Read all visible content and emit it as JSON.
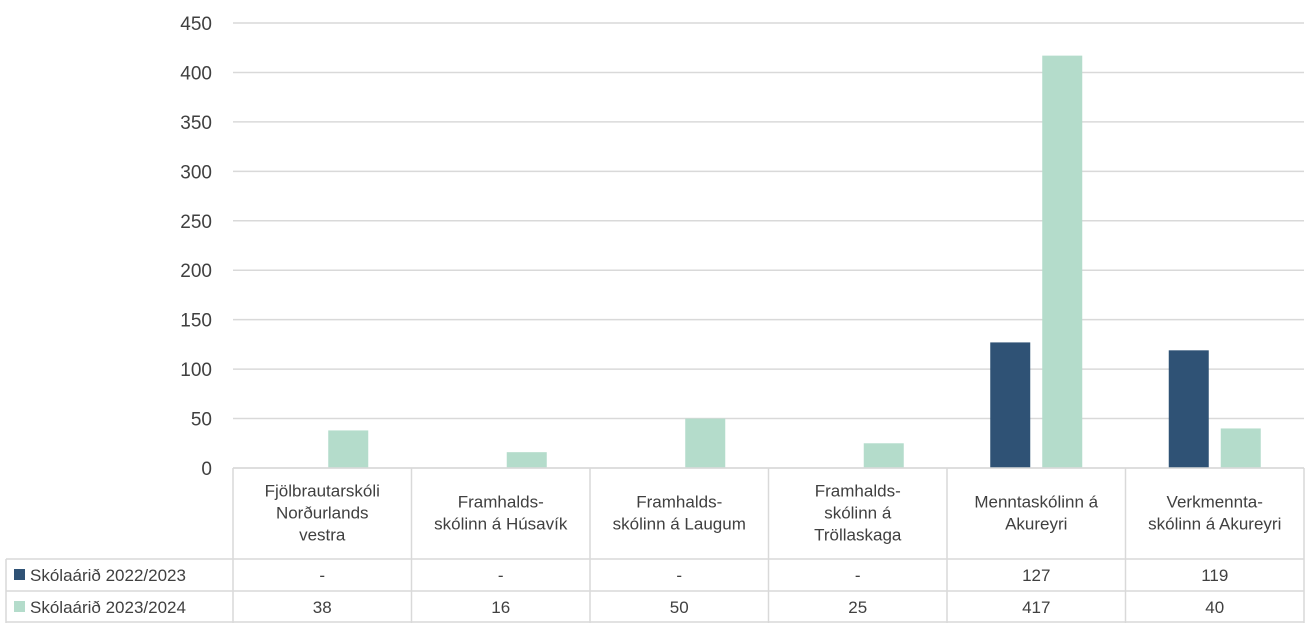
{
  "chart_data": {
    "type": "bar",
    "categories": [
      [
        "Fjölbrautarskóli",
        "Norðurlands",
        "vestra"
      ],
      [
        "Framhalds-",
        "skólinn á Húsavík"
      ],
      [
        "Framhalds-",
        "skólinn á Laugum"
      ],
      [
        "Framhalds-",
        "skólinn á",
        "Tröllaskaga"
      ],
      [
        "Menntaskólinn á",
        "Akureyri"
      ],
      [
        "Verkmennta-",
        "skólinn á Akureyri"
      ]
    ],
    "series": [
      {
        "name": "Skólaárið 2022/2023",
        "color": "#2f5275",
        "values": [
          null,
          null,
          null,
          null,
          127,
          119
        ],
        "labels": [
          "-",
          "-",
          "-",
          "-",
          "127",
          "119"
        ]
      },
      {
        "name": "Skólaárið 2023/2024",
        "color": "#b4dccb",
        "values": [
          38,
          16,
          50,
          25,
          417,
          40
        ],
        "labels": [
          "38",
          "16",
          "50",
          "25",
          "417",
          "40"
        ]
      }
    ],
    "ylim": [
      0,
      450
    ],
    "yticks": [
      "0",
      "50",
      "100",
      "150",
      "200",
      "250",
      "300",
      "350",
      "400",
      "450"
    ],
    "grid": true,
    "legend": "data-table"
  }
}
